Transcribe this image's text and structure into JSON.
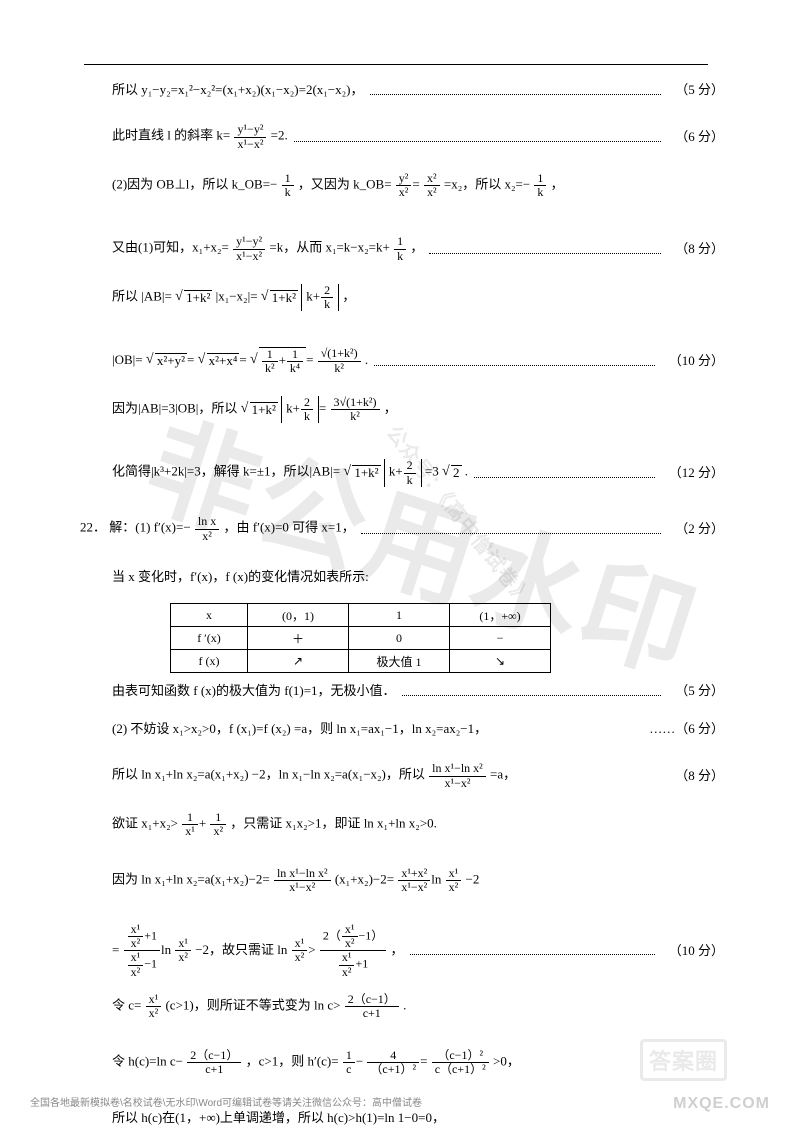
{
  "lines": {
    "l1": "所以 y₁−y₂=x₁²−x₂²=(x₁+x₂)(x₁−x₂)=2(x₁−x₂)，",
    "s1": "（5 分）",
    "l2_a": "此时直线 l 的斜率 k=",
    "l2_b": "=2.",
    "s2": "（6 分）",
    "l3_a": "(2)因为 OB⊥l，所以 k_OB=−",
    "l3_b": "，又因为 k_OB=",
    "l3_c": "=x₂，所以 x₂=−",
    "l3_d": "，",
    "l4_a": "又由(1)可知，x₁+x₂=",
    "l4_b": "=k，从而 x₁=k−x₂=k+",
    "l4_c": "，",
    "s4": "（8 分）",
    "l5_a": "所以 |AB|=",
    "l5_b": "|x₁−x₂|=",
    "l5_c": "，",
    "l6_a": "|OB|=",
    "l6_b": ".",
    "s6": "（10 分）",
    "l7_a": "因为|AB|=3|OB|，所以",
    "l7_b": "，",
    "l8_a": "化简得|k³+2k|=3，解得 k=±1，所以|AB|=",
    "l8_b": "=3",
    "l8_c": ".",
    "s8": "（12 分）",
    "q22": "22．",
    "l9_a": "解：(1) f′(x)=−",
    "l9_b": "，由 f′(x)=0 可得 x=1，",
    "s9": "（2 分）",
    "l10": "当 x 变化时，f′(x)，f (x)的变化情况如表所示:",
    "l11": "由表可知函数 f (x)的极大值为 f(1)=1，无极小值．",
    "s11": "（5 分）",
    "l12": "(2) 不妨设 x₁>x₂>0，f (x₁)=f (x₂) =a，则 ln x₁=ax₁−1，ln x₂=ax₂−1，",
    "s12": "……（6 分）",
    "l13_a": "所以 ln x₁+ln x₂=a(x₁+x₂) −2，ln x₁−ln x₂=a(x₁−x₂)，所以",
    "l13_b": "=a，",
    "s13": "（8 分）",
    "l14_a": "欲证 x₁+x₂>",
    "l14_b": "，只需证 x₁x₂>1，即证 ln x₁+ln x₂>0.",
    "l15_a": "因为 ln x₁+ln x₂=a(x₁+x₂)−2=",
    "l15_b": "(x₁+x₂)−2=",
    "l15_c": "−2",
    "l16_a": "=",
    "l16_b": "−2，故只需证 ln",
    "l16_c": "，",
    "s16": "（10 分）",
    "l17_a": "令 c=",
    "l17_b": "(c>1)，则所证不等式变为 ln c>",
    "l17_c": ".",
    "l18_a": "令 h(c)=ln c−",
    "l18_b": "，c>1，则 h′(c)=",
    "l18_c": ">0，",
    "l19": "所以 h(c)在(1，+∞)上单调递增，所以 h(c)>h(1)=ln 1−0=0，"
  },
  "frac": {
    "f2": {
      "n": "y¹−y²",
      "d": "x¹−x²"
    },
    "fk": {
      "n": "1",
      "d": "k"
    },
    "fy2x2": {
      "n": "y²",
      "d": "x²"
    },
    "fx22": {
      "n": "x²",
      "d": "x²"
    },
    "f4": {
      "n": "y¹−y²",
      "d": "x¹−x²"
    },
    "f2k": {
      "n": "2",
      "d": "k"
    },
    "fob_in": {
      "n": "1",
      "d": "k²"
    },
    "fob_in2": {
      "n": "1",
      "d": "k⁴"
    },
    "fob_r": {
      "n": "√(1+k²)",
      "d": "k²"
    },
    "f7r": {
      "n": "3√(1+k²)",
      "d": "k²"
    },
    "flnx": {
      "n": "ln x",
      "d": "x²"
    },
    "fln12": {
      "n": "ln x¹−ln x²",
      "d": "x¹−x²"
    },
    "f1x1": {
      "n": "1",
      "d": "x¹"
    },
    "f1x2": {
      "n": "1",
      "d": "x²"
    },
    "fxx": {
      "n": "x¹+x²",
      "d": "x¹−x²"
    },
    "flnxx": {
      "n": "x¹",
      "d": "x²"
    },
    "fbig1_n": {
      "n": "x¹",
      "d": "x²"
    },
    "fc": {
      "n": "x¹",
      "d": "x²"
    },
    "f2c": {
      "n": "2（c−1）",
      "d": "c+1"
    },
    "f1c": {
      "n": "1",
      "d": "c"
    },
    "f4c": {
      "n": "4",
      "d": "（c+1）²"
    },
    "fcc": {
      "n": "（c−1）²",
      "d": "c（c+1）²"
    }
  },
  "table": {
    "r1": [
      "x",
      "(0，1)",
      "1",
      "(1，+∞)"
    ],
    "r2": [
      "f ′(x)",
      "＋",
      "0",
      "−"
    ],
    "r3": [
      "f (x)",
      "↗",
      "极大值 1",
      "↘"
    ]
  },
  "watermarks": {
    "big": "非公用水印",
    "small": "公众号：《高中僧试卷》"
  },
  "footer": "全国各地最新模拟卷\\名校试卷\\无水印\\Word可编辑试卷等请关注微信公众号：高中僧试卷",
  "logo_box": "答案圈",
  "logo_text": "MXQE.COM"
}
